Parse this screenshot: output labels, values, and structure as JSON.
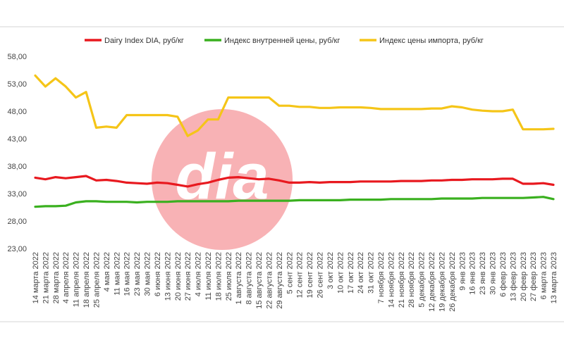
{
  "chart_data": {
    "type": "line",
    "title": "",
    "xlabel": "",
    "ylabel": "",
    "ylim": [
      23,
      58
    ],
    "y_ticks": [
      "23,00",
      "28,00",
      "33,00",
      "38,00",
      "43,00",
      "48,00",
      "53,00",
      "58,00"
    ],
    "grid": false,
    "legend_position": "top",
    "categories": [
      "14 марта 2022",
      "21 марта 2022",
      "28 марта 2022",
      "4 апреля 2022",
      "11 апреля 2022",
      "18 апреля 2022",
      "25 апреля 2022",
      "4 мая 2022",
      "11 мая 2022",
      "16 мая 2022",
      "23 мая 2022",
      "30 мая 2022",
      "6 июня 2022",
      "13 июня 2022",
      "20 июня 2022",
      "27 июня 2022",
      "4 июля 2022",
      "11 июля 2022",
      "18 июля 2022",
      "25 июля 2022",
      "1 августа 2022",
      "8 августа 2022",
      "15 августа 2022",
      "22 августа 2022",
      "29 августа 2022",
      "5 сент 2022",
      "12 сент 2022",
      "19 сент 2022",
      "26 сент 2022",
      "3 окт 2022",
      "10 окт 2022",
      "17 окт 2022",
      "24 окт 2022",
      "31 окт 2022",
      "7 ноября 2022",
      "14 ноября 2022",
      "21 ноября 2022",
      "28 ноября 2022",
      "5 декабря 2022",
      "12 декабря 2022",
      "19 декабря 2022",
      "26 декабря 2022",
      "9 янв 2023",
      "16 янв 2023",
      "23 янв 2023",
      "30 янв 2023",
      "6 февр 2023",
      "13 февр 2023",
      "20 февр 2023",
      "27 февр 2023",
      "6 марта 2023",
      "13 марта 2023"
    ],
    "series": [
      {
        "name": "Dairy Index DIA,  руб/кг",
        "color": "#e8191f",
        "values": [
          35.9,
          35.6,
          36.0,
          35.8,
          36.0,
          36.2,
          35.4,
          35.5,
          35.3,
          35.0,
          34.9,
          34.8,
          35.0,
          34.9,
          34.6,
          34.3,
          34.7,
          35.0,
          35.5,
          35.9,
          36.0,
          35.8,
          35.6,
          35.7,
          35.4,
          35.0,
          35.0,
          35.1,
          35.0,
          35.1,
          35.1,
          35.1,
          35.2,
          35.2,
          35.2,
          35.2,
          35.3,
          35.3,
          35.3,
          35.4,
          35.4,
          35.5,
          35.5,
          35.6,
          35.6,
          35.6,
          35.7,
          35.7,
          34.8,
          34.8,
          34.9,
          34.6
        ]
      },
      {
        "name": "Индекс внутренней цены, руб/кг",
        "color": "#3ab01f",
        "values": [
          30.6,
          30.7,
          30.7,
          30.8,
          31.4,
          31.6,
          31.6,
          31.5,
          31.5,
          31.5,
          31.4,
          31.5,
          31.5,
          31.5,
          31.6,
          31.6,
          31.6,
          31.6,
          31.6,
          31.6,
          31.7,
          31.7,
          31.7,
          31.7,
          31.7,
          31.7,
          31.8,
          31.8,
          31.8,
          31.8,
          31.8,
          31.9,
          31.9,
          31.9,
          31.9,
          32.0,
          32.0,
          32.0,
          32.0,
          32.0,
          32.1,
          32.1,
          32.1,
          32.1,
          32.2,
          32.2,
          32.2,
          32.2,
          32.2,
          32.3,
          32.4,
          32.0
        ]
      },
      {
        "name": "Индекс цены импорта, руб/кг",
        "color": "#f5c518",
        "values": [
          54.5,
          52.5,
          54.0,
          52.5,
          50.5,
          51.5,
          45.0,
          45.2,
          45.0,
          47.3,
          47.3,
          47.3,
          47.3,
          47.3,
          47.0,
          43.5,
          44.5,
          46.5,
          46.5,
          50.5,
          50.5,
          50.5,
          50.5,
          50.5,
          49.0,
          49.0,
          48.8,
          48.8,
          48.6,
          48.6,
          48.7,
          48.7,
          48.7,
          48.6,
          48.4,
          48.4,
          48.4,
          48.4,
          48.4,
          48.5,
          48.5,
          48.9,
          48.7,
          48.3,
          48.1,
          48.0,
          48.0,
          48.3,
          44.7,
          44.7,
          44.7,
          44.8
        ]
      }
    ]
  }
}
